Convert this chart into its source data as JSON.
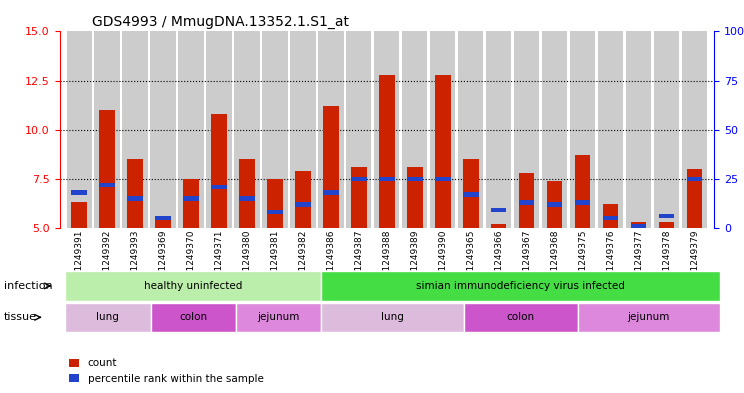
{
  "title": "GDS4993 / MmugDNA.13352.1.S1_at",
  "samples": [
    "GSM1249391",
    "GSM1249392",
    "GSM1249393",
    "GSM1249369",
    "GSM1249370",
    "GSM1249371",
    "GSM1249380",
    "GSM1249381",
    "GSM1249382",
    "GSM1249386",
    "GSM1249387",
    "GSM1249388",
    "GSM1249389",
    "GSM1249390",
    "GSM1249365",
    "GSM1249366",
    "GSM1249367",
    "GSM1249368",
    "GSM1249375",
    "GSM1249376",
    "GSM1249377",
    "GSM1249378",
    "GSM1249379"
  ],
  "count_values": [
    6.3,
    11.0,
    8.5,
    5.4,
    7.5,
    10.8,
    8.5,
    7.5,
    7.9,
    11.2,
    8.1,
    12.8,
    8.1,
    12.8,
    8.5,
    5.2,
    7.8,
    7.4,
    8.7,
    6.2,
    5.3,
    5.3,
    8.0
  ],
  "percentile_values": [
    6.8,
    7.2,
    6.5,
    5.5,
    6.5,
    7.1,
    6.5,
    5.8,
    6.2,
    6.8,
    7.5,
    7.5,
    7.5,
    7.5,
    6.7,
    5.9,
    6.3,
    6.2,
    6.3,
    5.5,
    5.1,
    5.6,
    7.5
  ],
  "ylim_left": [
    5,
    15
  ],
  "ylim_right": [
    0,
    100
  ],
  "yticks_left": [
    5,
    7.5,
    10,
    12.5,
    15
  ],
  "yticks_right": [
    0,
    25,
    50,
    75,
    100
  ],
  "bar_color": "#CC2200",
  "percentile_color": "#2244CC",
  "bg_color": "#CCCCCC",
  "infection_groups": [
    {
      "label": "healthy uninfected",
      "start": 0,
      "end": 9,
      "color": "#BBEEAA"
    },
    {
      "label": "simian immunodeficiency virus infected",
      "start": 9,
      "end": 23,
      "color": "#44DD44"
    }
  ],
  "tissue_groups": [
    {
      "label": "lung",
      "start": 0,
      "end": 3,
      "color": "#DDBBDD"
    },
    {
      "label": "colon",
      "start": 3,
      "end": 6,
      "color": "#CC55CC"
    },
    {
      "label": "jejunum",
      "start": 6,
      "end": 9,
      "color": "#DD88DD"
    },
    {
      "label": "lung",
      "start": 9,
      "end": 14,
      "color": "#DDBBDD"
    },
    {
      "label": "colon",
      "start": 14,
      "end": 18,
      "color": "#CC55CC"
    },
    {
      "label": "jejunum",
      "start": 18,
      "end": 23,
      "color": "#DD88DD"
    }
  ]
}
